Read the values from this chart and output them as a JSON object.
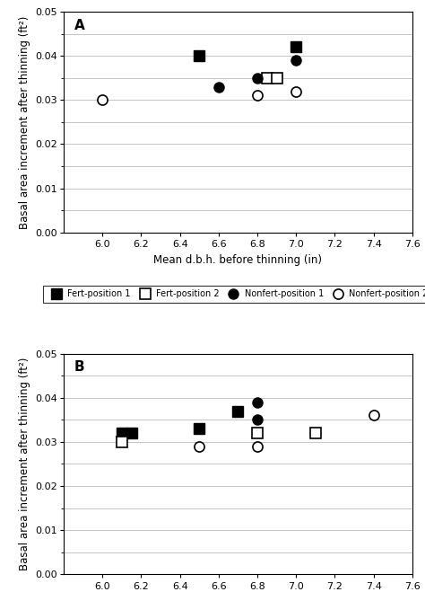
{
  "panel_A": {
    "fert_pos1": {
      "x": [
        6.5,
        7.0
      ],
      "y": [
        0.04,
        0.042
      ]
    },
    "fert_pos2": {
      "x": [
        6.85,
        6.9
      ],
      "y": [
        0.035,
        0.035
      ]
    },
    "nonfert_pos1": {
      "x": [
        6.6,
        6.8,
        7.0
      ],
      "y": [
        0.033,
        0.035,
        0.039
      ]
    },
    "nonfert_pos2": {
      "x": [
        6.0,
        6.8,
        7.0
      ],
      "y": [
        0.03,
        0.031,
        0.032
      ]
    }
  },
  "panel_B": {
    "fert_pos1": {
      "x": [
        6.1,
        6.15,
        6.5,
        6.7
      ],
      "y": [
        0.032,
        0.032,
        0.033,
        0.037
      ]
    },
    "fert_pos2": {
      "x": [
        6.1,
        6.8,
        7.1
      ],
      "y": [
        0.03,
        0.032,
        0.032
      ]
    },
    "nonfert_pos1": {
      "x": [
        6.8,
        6.8
      ],
      "y": [
        0.039,
        0.035
      ]
    },
    "nonfert_pos2": {
      "x": [
        6.5,
        6.8,
        7.4
      ],
      "y": [
        0.029,
        0.029,
        0.036
      ]
    }
  },
  "xlabel": "Mean d.b.h. before thinning (in)",
  "ylabel": "Basal area increment after thinning (ft²)",
  "xlim": [
    5.8,
    7.6
  ],
  "ylim": [
    0.0,
    0.05
  ],
  "yticks": [
    0.0,
    0.01,
    0.02,
    0.03,
    0.04,
    0.05
  ],
  "yticks_minor": [
    0.005,
    0.015,
    0.025,
    0.035,
    0.045
  ],
  "xticks": [
    6.0,
    6.2,
    6.4,
    6.6,
    6.8,
    7.0,
    7.2,
    7.4,
    7.6
  ],
  "legend_labels": [
    "Fert-position 1",
    "Fert-position 2",
    "Nonfert-position 1",
    "Nonfert-position 2"
  ],
  "marker_size": 8,
  "bg_color": "#ffffff",
  "grid_color": "#bbbbbb"
}
